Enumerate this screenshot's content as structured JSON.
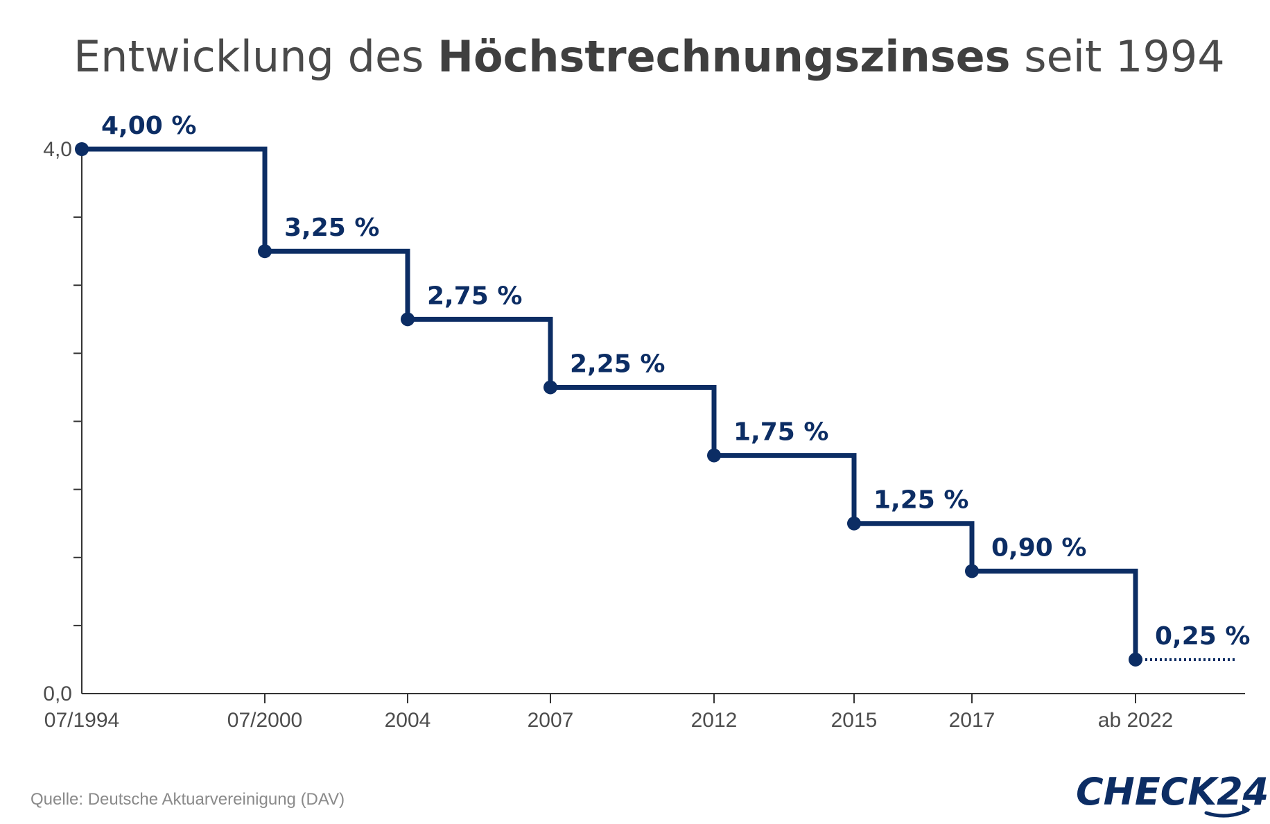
{
  "title": {
    "part1": "Entwicklung des ",
    "bold": "Höchstrechnungszinses",
    "part2": " seit 1994"
  },
  "source": "Quelle: Deutsche Aktuarvereinigung (DAV)",
  "logo": {
    "text": "CHECK24",
    "color": "#0c2d64"
  },
  "chart_data": {
    "type": "line",
    "step": true,
    "title": "Entwicklung des Höchstrechnungszinses seit 1994",
    "categories": [
      "07/1994",
      "07/2000",
      "2004",
      "2007",
      "2012",
      "2015",
      "2017",
      "ab 2022"
    ],
    "values": [
      4.0,
      3.25,
      2.75,
      2.25,
      1.75,
      1.25,
      0.9,
      0.25
    ],
    "value_labels": [
      "4,00 %",
      "3,25 %",
      "2,75 %",
      "2,25 %",
      "1,75 %",
      "1,25 %",
      "0,90 %",
      "0,25 %"
    ],
    "y_tick_labels": [
      "0,0",
      "4,0"
    ],
    "ylim": [
      0,
      4
    ],
    "y_minor_ticks": [
      0.5,
      1.0,
      1.5,
      2.0,
      2.5,
      3.0,
      3.5
    ],
    "last_segment_style": "dotted",
    "grid": false,
    "legend": "none",
    "color": "#0c2d64"
  }
}
